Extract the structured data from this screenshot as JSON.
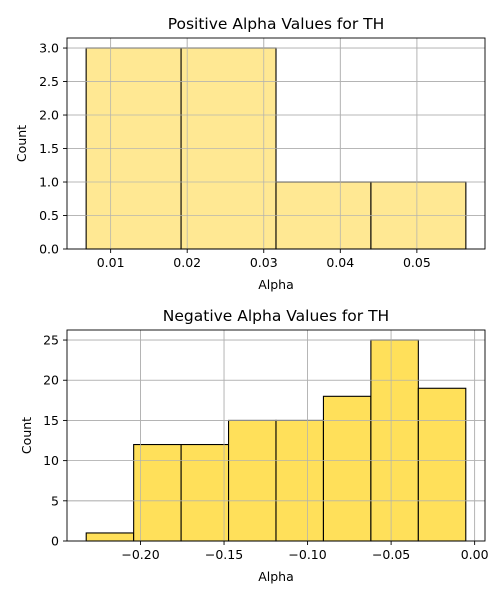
{
  "chart_data": [
    {
      "type": "bar",
      "title": "Positive Alpha Values for TH",
      "xlabel": "Alpha",
      "ylabel": "Count",
      "bins": [
        {
          "x0": 0.0068,
          "x1": 0.0192,
          "count": 3
        },
        {
          "x0": 0.0192,
          "x1": 0.0316,
          "count": 3
        },
        {
          "x0": 0.0316,
          "x1": 0.044,
          "count": 1
        },
        {
          "x0": 0.044,
          "x1": 0.0564,
          "count": 1
        }
      ],
      "xlim": [
        0.0043,
        0.0589
      ],
      "ylim": [
        0,
        3.15
      ],
      "xticks": [
        0.01,
        0.02,
        0.03,
        0.04,
        0.05
      ],
      "xtick_labels": [
        "0.01",
        "0.02",
        "0.03",
        "0.04",
        "0.05"
      ],
      "yticks": [
        0,
        0.5,
        1,
        1.5,
        2,
        2.5,
        3
      ],
      "ytick_labels": [
        "0.0",
        "0.5",
        "1.0",
        "1.5",
        "2.0",
        "2.5",
        "3.0"
      ],
      "grid": true,
      "bar_color": "#FFE893",
      "edge_color": "#000000"
    },
    {
      "type": "bar",
      "title": "Negative Alpha Values for TH",
      "xlabel": "Alpha",
      "ylabel": "Count",
      "bins": [
        {
          "x0": -0.2325,
          "x1": -0.2041,
          "count": 1
        },
        {
          "x0": -0.2041,
          "x1": -0.1757,
          "count": 12
        },
        {
          "x0": -0.1757,
          "x1": -0.1473,
          "count": 12
        },
        {
          "x0": -0.1473,
          "x1": -0.1189,
          "count": 15
        },
        {
          "x0": -0.1189,
          "x1": -0.0905,
          "count": 15
        },
        {
          "x0": -0.0905,
          "x1": -0.0621,
          "count": 18
        },
        {
          "x0": -0.0621,
          "x1": -0.0337,
          "count": 25
        },
        {
          "x0": -0.0337,
          "x1": -0.0053,
          "count": 19
        }
      ],
      "xlim": [
        -0.244,
        0.0062
      ],
      "ylim": [
        0,
        26.25
      ],
      "xticks": [
        -0.2,
        -0.15,
        -0.1,
        -0.05,
        0.0
      ],
      "xtick_labels": [
        "−0.20",
        "−0.15",
        "−0.10",
        "−0.05",
        "0.00"
      ],
      "yticks": [
        0,
        5,
        10,
        15,
        20,
        25
      ],
      "ytick_labels": [
        "0",
        "5",
        "10",
        "15",
        "20",
        "25"
      ],
      "grid": true,
      "bar_color": "#FFE05A",
      "edge_color": "#000000"
    }
  ]
}
